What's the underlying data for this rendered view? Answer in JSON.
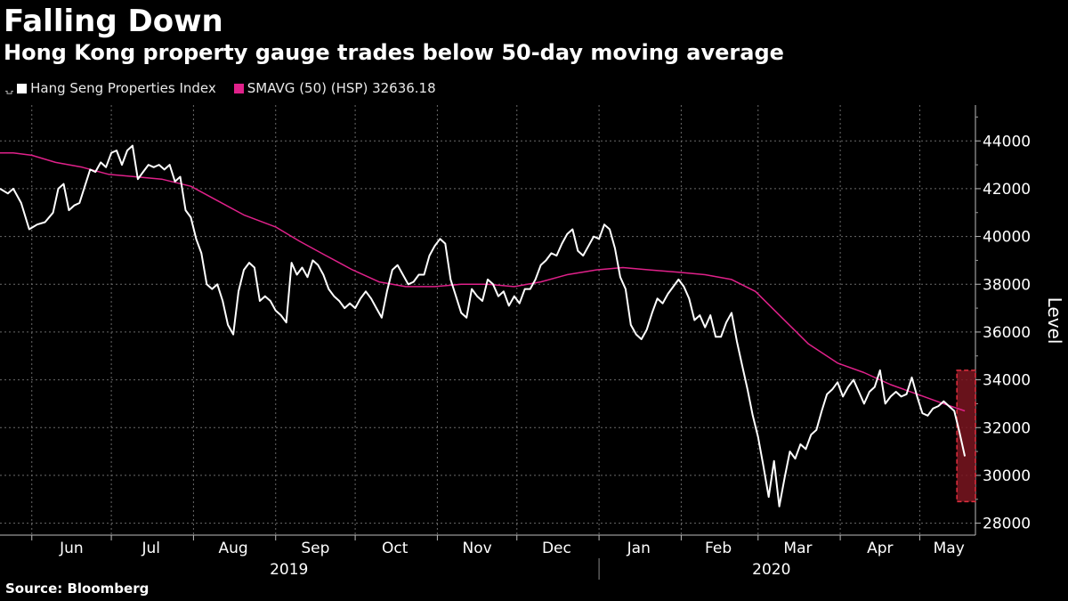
{
  "title": "Falling Down",
  "subtitle": "Hong Kong property gauge trades below 50-day moving average",
  "legend": [
    {
      "label": "Hang Seng Properties Index",
      "color": "#ffffff"
    },
    {
      "label": "SMAVG (50) (HSP) 32636.18",
      "color": "#e0218a"
    }
  ],
  "source": "Source: Bloomberg",
  "colors": {
    "index": "#ffffff",
    "smavg": "#e0218a",
    "highlight": "#7a1520",
    "highlight_border": "#e0303f",
    "grid": "#6a6a6a"
  },
  "chart_data": {
    "type": "line",
    "ylabel": "Level",
    "ylim": [
      27500,
      45500
    ],
    "yticks": [
      28000,
      30000,
      32000,
      34000,
      36000,
      38000,
      40000,
      42000,
      44000
    ],
    "ytick_labels": [
      "28000",
      "30000",
      "32000",
      "34000",
      "36000",
      "38000",
      "40000",
      "42000",
      "44000"
    ],
    "x_start": "2019-05-20",
    "x_end": "2020-05-22",
    "month_labels": [
      {
        "date": "2019-06-16",
        "label": "Jun"
      },
      {
        "date": "2019-07-16",
        "label": "Jul"
      },
      {
        "date": "2019-08-16",
        "label": "Aug"
      },
      {
        "date": "2019-09-16",
        "label": "Sep"
      },
      {
        "date": "2019-10-16",
        "label": "Oct"
      },
      {
        "date": "2019-11-16",
        "label": "Nov"
      },
      {
        "date": "2019-12-16",
        "label": "Dec"
      },
      {
        "date": "2020-01-16",
        "label": "Jan"
      },
      {
        "date": "2020-02-15",
        "label": "Feb"
      },
      {
        "date": "2020-03-16",
        "label": "Mar"
      },
      {
        "date": "2020-04-16",
        "label": "Apr"
      },
      {
        "date": "2020-05-12",
        "label": "May"
      }
    ],
    "month_boundaries": [
      "2019-06-01",
      "2019-07-01",
      "2019-08-01",
      "2019-09-01",
      "2019-10-01",
      "2019-11-01",
      "2019-12-01",
      "2020-01-01",
      "2020-02-01",
      "2020-03-01",
      "2020-04-01",
      "2020-05-01"
    ],
    "year_labels": [
      {
        "date": "2019-09-01",
        "label": "2019"
      },
      {
        "date": "2020-03-01",
        "label": "2020"
      }
    ],
    "year_divider": "2020-01-01",
    "highlight": {
      "x0": "2020-05-15",
      "x1": "2020-05-22",
      "y0": 28900,
      "y1": 34400
    },
    "series": [
      {
        "name": "Hang Seng Properties Index",
        "points": [
          [
            "2019-05-20",
            42000
          ],
          [
            "2019-05-23",
            41800
          ],
          [
            "2019-05-25",
            42000
          ],
          [
            "2019-05-28",
            41400
          ],
          [
            "2019-05-31",
            40300
          ],
          [
            "2019-06-03",
            40500
          ],
          [
            "2019-06-06",
            40600
          ],
          [
            "2019-06-09",
            41000
          ],
          [
            "2019-06-11",
            42000
          ],
          [
            "2019-06-13",
            42200
          ],
          [
            "2019-06-15",
            41100
          ],
          [
            "2019-06-17",
            41300
          ],
          [
            "2019-06-19",
            41400
          ],
          [
            "2019-06-21",
            42100
          ],
          [
            "2019-06-23",
            42800
          ],
          [
            "2019-06-25",
            42700
          ],
          [
            "2019-06-27",
            43100
          ],
          [
            "2019-06-29",
            42900
          ],
          [
            "2019-07-01",
            43500
          ],
          [
            "2019-07-03",
            43600
          ],
          [
            "2019-07-05",
            43000
          ],
          [
            "2019-07-07",
            43600
          ],
          [
            "2019-07-09",
            43800
          ],
          [
            "2019-07-11",
            42400
          ],
          [
            "2019-07-13",
            42700
          ],
          [
            "2019-07-15",
            43000
          ],
          [
            "2019-07-17",
            42900
          ],
          [
            "2019-07-19",
            43000
          ],
          [
            "2019-07-21",
            42800
          ],
          [
            "2019-07-23",
            43000
          ],
          [
            "2019-07-25",
            42300
          ],
          [
            "2019-07-27",
            42500
          ],
          [
            "2019-07-29",
            41100
          ],
          [
            "2019-07-31",
            40800
          ],
          [
            "2019-08-02",
            39900
          ],
          [
            "2019-08-04",
            39300
          ],
          [
            "2019-08-06",
            38000
          ],
          [
            "2019-08-08",
            37800
          ],
          [
            "2019-08-10",
            38000
          ],
          [
            "2019-08-12",
            37300
          ],
          [
            "2019-08-14",
            36300
          ],
          [
            "2019-08-16",
            35900
          ],
          [
            "2019-08-18",
            37700
          ],
          [
            "2019-08-20",
            38600
          ],
          [
            "2019-08-22",
            38900
          ],
          [
            "2019-08-24",
            38700
          ],
          [
            "2019-08-26",
            37300
          ],
          [
            "2019-08-28",
            37500
          ],
          [
            "2019-08-30",
            37300
          ],
          [
            "2019-09-01",
            36900
          ],
          [
            "2019-09-03",
            36700
          ],
          [
            "2019-09-05",
            36400
          ],
          [
            "2019-09-07",
            38900
          ],
          [
            "2019-09-09",
            38400
          ],
          [
            "2019-09-11",
            38700
          ],
          [
            "2019-09-13",
            38300
          ],
          [
            "2019-09-15",
            39000
          ],
          [
            "2019-09-17",
            38800
          ],
          [
            "2019-09-19",
            38400
          ],
          [
            "2019-09-21",
            37800
          ],
          [
            "2019-09-23",
            37500
          ],
          [
            "2019-09-25",
            37300
          ],
          [
            "2019-09-27",
            37000
          ],
          [
            "2019-09-29",
            37200
          ],
          [
            "2019-10-01",
            37000
          ],
          [
            "2019-10-03",
            37400
          ],
          [
            "2019-10-05",
            37700
          ],
          [
            "2019-10-07",
            37400
          ],
          [
            "2019-10-09",
            37000
          ],
          [
            "2019-10-11",
            36600
          ],
          [
            "2019-10-13",
            37700
          ],
          [
            "2019-10-15",
            38600
          ],
          [
            "2019-10-17",
            38800
          ],
          [
            "2019-10-19",
            38400
          ],
          [
            "2019-10-21",
            38000
          ],
          [
            "2019-10-23",
            38100
          ],
          [
            "2019-10-25",
            38400
          ],
          [
            "2019-10-27",
            38400
          ],
          [
            "2019-10-29",
            39200
          ],
          [
            "2019-10-31",
            39600
          ],
          [
            "2019-11-02",
            39900
          ],
          [
            "2019-11-04",
            39700
          ],
          [
            "2019-11-06",
            38200
          ],
          [
            "2019-11-08",
            37500
          ],
          [
            "2019-11-10",
            36800
          ],
          [
            "2019-11-12",
            36600
          ],
          [
            "2019-11-14",
            37800
          ],
          [
            "2019-11-16",
            37500
          ],
          [
            "2019-11-18",
            37300
          ],
          [
            "2019-11-20",
            38200
          ],
          [
            "2019-11-22",
            38000
          ],
          [
            "2019-11-24",
            37500
          ],
          [
            "2019-11-26",
            37700
          ],
          [
            "2019-11-28",
            37100
          ],
          [
            "2019-11-30",
            37500
          ],
          [
            "2019-12-02",
            37200
          ],
          [
            "2019-12-04",
            37800
          ],
          [
            "2019-12-06",
            37800
          ],
          [
            "2019-12-08",
            38200
          ],
          [
            "2019-12-10",
            38800
          ],
          [
            "2019-12-12",
            39000
          ],
          [
            "2019-12-14",
            39300
          ],
          [
            "2019-12-16",
            39200
          ],
          [
            "2019-12-18",
            39700
          ],
          [
            "2019-12-20",
            40100
          ],
          [
            "2019-12-22",
            40300
          ],
          [
            "2019-12-24",
            39400
          ],
          [
            "2019-12-26",
            39200
          ],
          [
            "2019-12-28",
            39600
          ],
          [
            "2019-12-30",
            40000
          ],
          [
            "2020-01-01",
            39900
          ],
          [
            "2020-01-03",
            40500
          ],
          [
            "2020-01-05",
            40300
          ],
          [
            "2020-01-07",
            39500
          ],
          [
            "2020-01-09",
            38300
          ],
          [
            "2020-01-11",
            37800
          ],
          [
            "2020-01-13",
            36300
          ],
          [
            "2020-01-15",
            35900
          ],
          [
            "2020-01-17",
            35700
          ],
          [
            "2020-01-19",
            36100
          ],
          [
            "2020-01-21",
            36800
          ],
          [
            "2020-01-23",
            37400
          ],
          [
            "2020-01-25",
            37200
          ],
          [
            "2020-01-27",
            37600
          ],
          [
            "2020-01-29",
            37900
          ],
          [
            "2020-01-31",
            38200
          ],
          [
            "2020-02-02",
            37900
          ],
          [
            "2020-02-04",
            37400
          ],
          [
            "2020-02-06",
            36500
          ],
          [
            "2020-02-08",
            36700
          ],
          [
            "2020-02-10",
            36200
          ],
          [
            "2020-02-12",
            36700
          ],
          [
            "2020-02-14",
            35800
          ],
          [
            "2020-02-16",
            35800
          ],
          [
            "2020-02-18",
            36400
          ],
          [
            "2020-02-20",
            36800
          ],
          [
            "2020-02-22",
            35600
          ],
          [
            "2020-02-24",
            34600
          ],
          [
            "2020-02-26",
            33600
          ],
          [
            "2020-02-28",
            32500
          ],
          [
            "2020-03-01",
            31600
          ],
          [
            "2020-03-03",
            30400
          ],
          [
            "2020-03-05",
            29100
          ],
          [
            "2020-03-07",
            30600
          ],
          [
            "2020-03-09",
            28700
          ],
          [
            "2020-03-11",
            29900
          ],
          [
            "2020-03-13",
            31000
          ],
          [
            "2020-03-15",
            30700
          ],
          [
            "2020-03-17",
            31300
          ],
          [
            "2020-03-19",
            31100
          ],
          [
            "2020-03-21",
            31700
          ],
          [
            "2020-03-23",
            31900
          ],
          [
            "2020-03-25",
            32700
          ],
          [
            "2020-03-27",
            33400
          ],
          [
            "2020-03-29",
            33600
          ],
          [
            "2020-03-31",
            33900
          ],
          [
            "2020-04-02",
            33300
          ],
          [
            "2020-04-04",
            33700
          ],
          [
            "2020-04-06",
            34000
          ],
          [
            "2020-04-08",
            33500
          ],
          [
            "2020-04-10",
            33000
          ],
          [
            "2020-04-12",
            33500
          ],
          [
            "2020-04-14",
            33700
          ],
          [
            "2020-04-16",
            34400
          ],
          [
            "2020-04-18",
            33000
          ],
          [
            "2020-04-20",
            33300
          ],
          [
            "2020-04-22",
            33500
          ],
          [
            "2020-04-24",
            33300
          ],
          [
            "2020-04-26",
            33400
          ],
          [
            "2020-04-28",
            34100
          ],
          [
            "2020-04-30",
            33300
          ],
          [
            "2020-05-02",
            32600
          ],
          [
            "2020-05-04",
            32500
          ],
          [
            "2020-05-06",
            32800
          ],
          [
            "2020-05-08",
            32900
          ],
          [
            "2020-05-10",
            33100
          ],
          [
            "2020-05-12",
            32900
          ],
          [
            "2020-05-14",
            32700
          ],
          [
            "2020-05-16",
            31800
          ],
          [
            "2020-05-18",
            30800
          ]
        ]
      },
      {
        "name": "SMAVG (50) (HSP) 32636.18",
        "points": [
          [
            "2019-05-20",
            43500
          ],
          [
            "2019-05-25",
            43500
          ],
          [
            "2019-06-01",
            43400
          ],
          [
            "2019-06-10",
            43100
          ],
          [
            "2019-06-20",
            42900
          ],
          [
            "2019-06-30",
            42600
          ],
          [
            "2019-07-10",
            42500
          ],
          [
            "2019-07-20",
            42400
          ],
          [
            "2019-07-31",
            42100
          ],
          [
            "2019-08-10",
            41500
          ],
          [
            "2019-08-20",
            40900
          ],
          [
            "2019-09-01",
            40400
          ],
          [
            "2019-09-10",
            39800
          ],
          [
            "2019-09-20",
            39200
          ],
          [
            "2019-09-30",
            38600
          ],
          [
            "2019-10-10",
            38100
          ],
          [
            "2019-10-20",
            37900
          ],
          [
            "2019-10-31",
            37900
          ],
          [
            "2019-11-10",
            38000
          ],
          [
            "2019-11-20",
            38000
          ],
          [
            "2019-11-30",
            37900
          ],
          [
            "2019-12-10",
            38100
          ],
          [
            "2019-12-20",
            38400
          ],
          [
            "2019-12-31",
            38600
          ],
          [
            "2020-01-10",
            38700
          ],
          [
            "2020-01-20",
            38600
          ],
          [
            "2020-01-31",
            38500
          ],
          [
            "2020-02-10",
            38400
          ],
          [
            "2020-02-20",
            38200
          ],
          [
            "2020-02-29",
            37700
          ],
          [
            "2020-03-10",
            36600
          ],
          [
            "2020-03-20",
            35500
          ],
          [
            "2020-03-31",
            34700
          ],
          [
            "2020-04-10",
            34300
          ],
          [
            "2020-04-20",
            33800
          ],
          [
            "2020-04-30",
            33400
          ],
          [
            "2020-05-10",
            33000
          ],
          [
            "2020-05-18",
            32700
          ]
        ]
      }
    ]
  }
}
